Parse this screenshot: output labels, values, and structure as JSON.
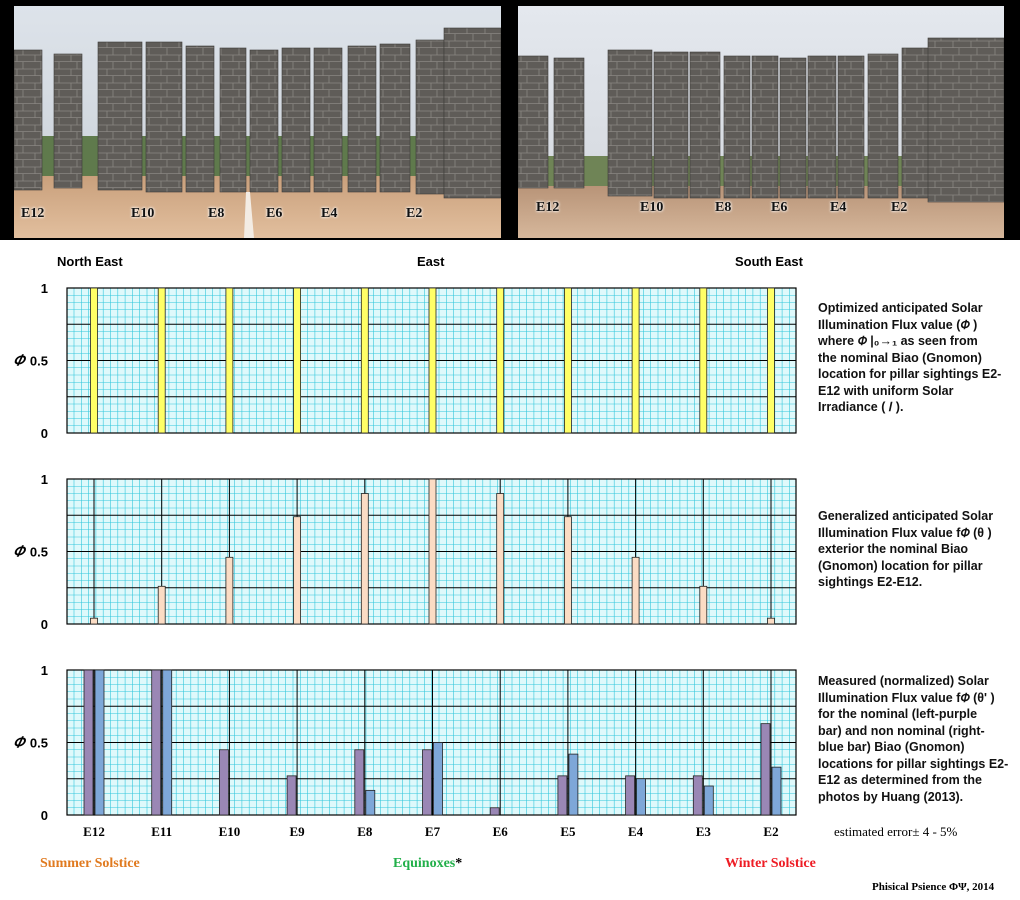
{
  "photos": {
    "left_labels": [
      "E12",
      "E10",
      "E8",
      "E6",
      "E4",
      "E2"
    ],
    "right_labels": [
      "E12",
      "E10",
      "E8",
      "E6",
      "E4",
      "E2"
    ]
  },
  "directions": {
    "north_east": "North East",
    "east": "East",
    "south_east": "South East"
  },
  "seasons": {
    "summer": "Summer Solstice",
    "equinox": "Equinoxes",
    "equinox_mark": "*",
    "winter": "Winter Solstice"
  },
  "error_note": "estimated error± 4 - 5%",
  "credit": "Phisical Psience ΦΨ, 2014",
  "descriptions": {
    "chart1": [
      "Optimized  anticipated Solar",
      "Illumination Flux value (𝛷 )",
      "where 𝛷 |₀→₁ as seen from",
      "the nominal Biao (Gnomon)",
      "location for pillar sightings E2-",
      "E12 with uniform Solar",
      "Irradiance ( 𝐼 )."
    ],
    "chart2": [
      "Generalized  anticipated Solar",
      "Illumination Flux value  f𝛷 (θ )",
      "exterior the nominal Biao",
      "(Gnomon) location for pillar",
      "sightings E2-E12."
    ],
    "chart3": [
      "Measured (normalized) Solar",
      "Illumination Flux value  f𝛷 (θ' )",
      "for the nominal  (left-purple",
      "bar) and  non nominal (right-",
      "blue bar) Biao (Gnomon)",
      "locations for pillar sightings E2-",
      "E12 as determined from the",
      "photos by Huang (2013)."
    ]
  },
  "chart_data": [
    {
      "type": "bar",
      "ylabel": "𝛷",
      "ylim": [
        0,
        1
      ],
      "yticks": [
        0,
        0.5,
        1
      ],
      "categories": [
        "E12",
        "E11",
        "E10",
        "E9",
        "E8",
        "E7",
        "E6",
        "E5",
        "E4",
        "E3",
        "E2"
      ],
      "series": [
        {
          "values": [
            1,
            1,
            1,
            1,
            1,
            1,
            1,
            1,
            1,
            1,
            1
          ],
          "color": "#ffff66"
        }
      ]
    },
    {
      "type": "bar",
      "ylabel": "𝛷",
      "ylim": [
        0,
        1
      ],
      "yticks": [
        0,
        0.5,
        1
      ],
      "categories": [
        "E12",
        "E11",
        "E10",
        "E9",
        "E8",
        "E7",
        "E6",
        "E5",
        "E4",
        "E3",
        "E2"
      ],
      "series": [
        {
          "values": [
            0.04,
            0.26,
            0.46,
            0.74,
            0.9,
            1.0,
            0.9,
            0.74,
            0.46,
            0.26,
            0.04
          ],
          "color": "#fbdcc4"
        }
      ]
    },
    {
      "type": "bar",
      "ylabel": "𝛷",
      "ylim": [
        0,
        1
      ],
      "yticks": [
        0,
        0.5,
        1
      ],
      "categories": [
        "E12",
        "E11",
        "E10",
        "E9",
        "E8",
        "E7",
        "E6",
        "E5",
        "E4",
        "E3",
        "E2"
      ],
      "series": [
        {
          "values": [
            1.0,
            1.0,
            0.45,
            0.27,
            0.45,
            0.45,
            0.05,
            0.27,
            0.27,
            0.27,
            0.63
          ],
          "color": "#9a87b5"
        },
        {
          "values": [
            1.0,
            1.0,
            null,
            null,
            0.17,
            0.5,
            null,
            0.42,
            0.25,
            0.2,
            0.33
          ],
          "color": "#7ea7d8"
        }
      ]
    }
  ]
}
